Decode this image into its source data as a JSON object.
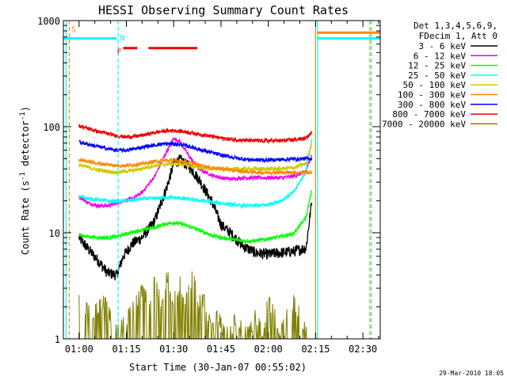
{
  "chart_data": {
    "type": "line",
    "title": "HESSI Observing Summary Count Rates",
    "xlabel": "Start Time (30-Jan-07 00:55:02)",
    "ylabel": "Count Rate (s-1 detector-1)",
    "ylabel_parts": {
      "pre": "Count Rate (s",
      "sup1": "-1",
      "mid": " detector",
      "sup2": "-1",
      "post": ")"
    },
    "y_scale": "log",
    "ylim": [
      1,
      1000
    ],
    "xlim_minutes": [
      55.03,
      155.5
    ],
    "x_ticks": [
      {
        "label": "01:00",
        "m": 60
      },
      {
        "label": "01:15",
        "m": 75
      },
      {
        "label": "01:30",
        "m": 90
      },
      {
        "label": "01:45",
        "m": 105
      },
      {
        "label": "02:00",
        "m": 120
      },
      {
        "label": "02:15",
        "m": 135
      },
      {
        "label": "02:30",
        "m": 150
      }
    ],
    "y_ticks": [
      {
        "label": "1",
        "v": 1
      },
      {
        "label": "10",
        "v": 10
      },
      {
        "label": "100",
        "v": 100
      },
      {
        "label": "1000",
        "v": 1000
      }
    ],
    "legend_header": [
      "Det 1,3,4,5,6,9,",
      "FDecim 1, Att 0"
    ],
    "series": [
      {
        "name": "3 - 6 keV",
        "color": "#000000",
        "x": [
          60,
          63,
          66,
          69,
          72,
          74,
          77,
          80,
          84,
          88,
          90,
          92,
          95,
          98,
          102,
          105,
          108,
          112,
          116,
          120,
          124,
          128,
          132,
          133.8
        ],
        "y": [
          9,
          7,
          5.5,
          4.2,
          4.0,
          6,
          8,
          9,
          13,
          28,
          45,
          49,
          42,
          32,
          20,
          12,
          10,
          7.5,
          6.5,
          6.3,
          6.5,
          6.7,
          7.2,
          20
        ]
      },
      {
        "name": "6 - 12 keV",
        "color": "#ee00ee",
        "x": [
          60,
          63,
          66,
          69,
          72,
          74,
          77,
          80,
          84,
          88,
          90,
          92,
          95,
          98,
          102,
          105,
          108,
          112,
          116,
          120,
          124,
          128,
          132,
          133.8
        ],
        "y": [
          22,
          19,
          18,
          18,
          19,
          20,
          21,
          24,
          34,
          60,
          78,
          72,
          52,
          40,
          35,
          33,
          32,
          33,
          33,
          33,
          33,
          34,
          38,
          55
        ]
      },
      {
        "name": "12 - 25 keV",
        "color": "#00ff00",
        "x": [
          60,
          63,
          66,
          69,
          72,
          75,
          78,
          81,
          84,
          87,
          90,
          93,
          96,
          99,
          102,
          105,
          108,
          111,
          114,
          117,
          120,
          124,
          128,
          132,
          133.8
        ],
        "y": [
          9.5,
          9.2,
          9,
          9,
          9.2,
          9.8,
          10.3,
          10.8,
          11.2,
          12,
          12.5,
          12,
          11.2,
          10.3,
          9.5,
          9,
          8.7,
          8.5,
          8.3,
          8.5,
          8.8,
          9.2,
          9.8,
          14,
          25
        ]
      },
      {
        "name": "25 - 50 keV",
        "color": "#00ffff",
        "x": [
          60,
          63,
          66,
          69,
          72,
          75,
          78,
          81,
          84,
          87,
          90,
          93,
          96,
          99,
          102,
          105,
          108,
          111,
          114,
          117,
          120,
          124,
          128,
          132,
          133.8
        ],
        "y": [
          22,
          21,
          20.5,
          20,
          19.8,
          20,
          20.5,
          21,
          21,
          21.5,
          21.5,
          21,
          20.5,
          20,
          19.5,
          19,
          18.5,
          18,
          18,
          18,
          18.5,
          20,
          24,
          38,
          75
        ]
      },
      {
        "name": "50 - 100 keV",
        "color": "#cccc00",
        "x": [
          60,
          63,
          66,
          69,
          72,
          75,
          78,
          81,
          84,
          87,
          90,
          93,
          96,
          99,
          102,
          105,
          108,
          111,
          114,
          117,
          120,
          124,
          128,
          132,
          133.8
        ],
        "y": [
          44,
          41,
          39,
          38,
          37,
          38,
          39,
          41,
          43,
          44,
          45,
          44,
          42,
          41,
          40,
          40,
          40,
          40,
          40,
          40,
          40,
          40,
          41,
          45,
          70
        ]
      },
      {
        "name": "100 - 300 keV",
        "color": "#ff8800",
        "x": [
          60,
          63,
          66,
          69,
          72,
          75,
          78,
          81,
          84,
          87,
          90,
          93,
          96,
          99,
          102,
          105,
          108,
          111,
          114,
          117,
          120,
          124,
          128,
          132,
          133.8
        ],
        "y": [
          49,
          47,
          45,
          44,
          43,
          43,
          44,
          45,
          47,
          48,
          48,
          47,
          45,
          43,
          41,
          40,
          39,
          38,
          37.5,
          37,
          37,
          37,
          37,
          37,
          37
        ]
      },
      {
        "name": "300 - 800 keV",
        "color": "#0000ff",
        "x": [
          60,
          63,
          66,
          69,
          72,
          75,
          78,
          81,
          84,
          87,
          90,
          93,
          96,
          99,
          102,
          105,
          108,
          111,
          114,
          117,
          120,
          124,
          128,
          132,
          133.8
        ],
        "y": [
          72,
          68,
          65,
          62,
          60,
          60,
          62,
          65,
          67,
          69,
          69,
          67,
          64,
          60,
          57,
          54,
          52,
          50,
          49,
          48.5,
          48.5,
          49,
          49.5,
          50,
          50
        ]
      },
      {
        "name": "800 - 7000 keV",
        "color": "#ee0000",
        "x": [
          60,
          63,
          66,
          69,
          72,
          75,
          78,
          81,
          84,
          87,
          90,
          93,
          96,
          99,
          102,
          105,
          108,
          111,
          114,
          117,
          120,
          124,
          128,
          132,
          133.8
        ],
        "y": [
          102,
          96,
          90,
          86,
          82,
          80,
          81,
          84,
          88,
          91,
          92,
          90,
          87,
          84,
          81,
          78,
          76,
          75,
          74,
          73.5,
          73.5,
          74,
          75,
          78,
          88
        ]
      },
      {
        "name": "7000 - 20000 keV",
        "color": "#808000",
        "x": [
          60,
          64,
          68,
          72,
          76,
          80,
          82,
          84,
          86,
          88,
          90,
          92,
          94,
          96,
          98,
          100,
          102,
          104,
          106,
          108,
          110,
          112,
          114,
          116,
          118,
          120,
          122,
          124,
          126,
          128,
          130,
          132,
          133.8
        ],
        "y": [
          2.0,
          1.5,
          2.0,
          1.0,
          1.5,
          2.5,
          2.0,
          3.0,
          2.0,
          3.5,
          2.0,
          3.0,
          2.0,
          3.5,
          2.0,
          2.0,
          1.0,
          1.5,
          1.0,
          1.0,
          1.5,
          1.0,
          1.0,
          1.5,
          1.0,
          2.0,
          1.5,
          1.0,
          1.5,
          2.0,
          1.5,
          1.0,
          1.0
        ]
      }
    ],
    "flags": [
      {
        "label": "S",
        "color": "#ff8800",
        "label_x": 57.5,
        "label_y": 780
      },
      {
        "label": "N",
        "color": "#00ffff",
        "label_x": 73,
        "label_y": 650
      },
      {
        "label": "F",
        "color": "#ee0000",
        "label_x": 72,
        "label_y": 480
      }
    ],
    "flag_bars": [
      {
        "color": "#00ffff",
        "y": 680,
        "x1": 55.03,
        "x2": 72
      },
      {
        "color": "#ee0000",
        "y": 550,
        "x1": 74,
        "x2": 78.5
      },
      {
        "color": "#ee0000",
        "y": 550,
        "x1": 82,
        "x2": 97.5
      },
      {
        "color": "#ff8800",
        "y": 770,
        "x1": 135.5,
        "x2": 155.5
      },
      {
        "color": "#00ffff",
        "y": 680,
        "x1": 135.5,
        "x2": 155.5
      }
    ],
    "vlines": [
      {
        "color": "#00ffff",
        "x": 55.9,
        "style": "solid"
      },
      {
        "color": "#ff8800",
        "x": 56.9,
        "style": "dashed"
      },
      {
        "color": "#00ffff",
        "x": 72.4,
        "style": "dashed"
      },
      {
        "color": "#ff8800",
        "x": 135.0,
        "style": "solid"
      },
      {
        "color": "#00ffff",
        "x": 135.6,
        "style": "solid"
      },
      {
        "color": "#ff8800",
        "x": 152.2,
        "style": "dashed"
      },
      {
        "color": "#00ffff",
        "x": 152.7,
        "style": "dashed"
      }
    ],
    "grid": false,
    "legend_position": "right"
  },
  "footer_date": "29-Mar-2010 18:05"
}
